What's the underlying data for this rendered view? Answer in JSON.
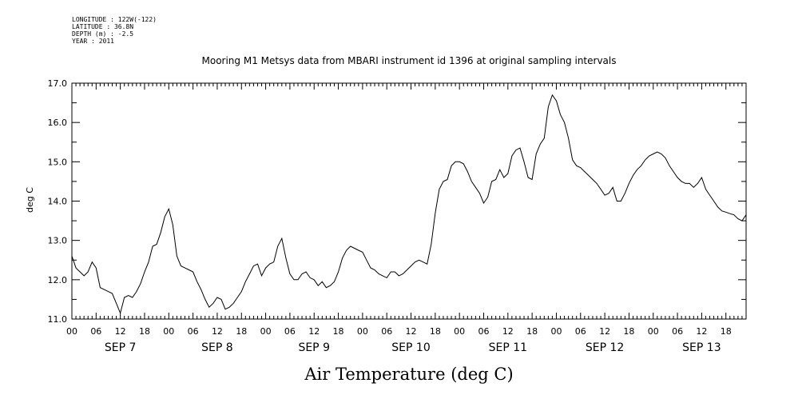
{
  "header": {
    "meta_lines": [
      "LONGITUDE : 122W(-122)",
      "LATITUDE : 36.8N",
      "DEPTH (m) : -2.5",
      "YEAR : 2011"
    ]
  },
  "chart_data": {
    "type": "line",
    "title": "Mooring M1 Metsys data from MBARI instrument id 1396 at original sampling intervals",
    "xlabel": "Air Temperature (deg C)",
    "ylabel": "deg C",
    "ylim": [
      11.0,
      17.0
    ],
    "yticks": [
      "11.0",
      "12.0",
      "13.0",
      "14.0",
      "15.0",
      "16.0",
      "17.0"
    ],
    "xlim_hours": [
      0,
      167
    ],
    "hour_tick_labels": [
      "00",
      "06",
      "12",
      "18",
      "00",
      "06",
      "12",
      "18",
      "00",
      "06",
      "12",
      "18",
      "00",
      "06",
      "12",
      "18",
      "00",
      "06",
      "12",
      "18",
      "00",
      "06",
      "12",
      "18",
      "00",
      "06",
      "12",
      "18"
    ],
    "day_labels": [
      "SEP  7",
      "SEP  8",
      "SEP  9",
      "SEP 10",
      "SEP 11",
      "SEP 12",
      "SEP 13"
    ],
    "grid": false,
    "series": [
      {
        "x_hours": [
          0,
          1,
          2,
          3,
          4,
          5,
          6,
          7,
          8,
          9,
          10,
          11,
          12,
          13,
          14,
          15,
          16,
          17,
          18,
          19,
          20,
          21,
          22,
          23,
          24,
          25,
          26,
          27,
          28,
          29,
          30,
          31,
          32,
          33,
          34,
          35,
          36,
          37,
          38,
          39,
          40,
          41,
          42,
          43,
          44,
          45,
          46,
          47,
          48,
          49,
          50,
          51,
          52,
          53,
          54,
          55,
          56,
          57,
          58,
          59,
          60,
          61,
          62,
          63,
          64,
          65,
          66,
          67,
          68,
          69,
          70,
          71,
          72,
          73,
          74,
          75,
          76,
          77,
          78,
          79,
          80,
          81,
          82,
          83,
          84,
          85,
          86,
          87,
          88,
          89,
          90,
          91,
          92,
          93,
          94,
          95,
          96,
          97,
          98,
          99,
          100,
          101,
          102,
          103,
          104,
          105,
          106,
          107,
          108,
          109,
          110,
          111,
          112,
          113,
          114,
          115,
          116,
          117,
          118,
          119,
          120,
          121,
          122,
          123,
          124,
          125,
          126,
          127,
          128,
          129,
          130,
          131,
          132,
          133,
          134,
          135,
          136,
          137,
          138,
          139,
          140,
          141,
          142,
          143,
          144,
          145,
          146,
          147,
          148,
          149,
          150,
          151,
          152,
          153,
          154,
          155,
          156,
          157,
          158,
          159,
          160,
          161,
          162,
          163,
          164,
          165,
          166,
          167
        ],
        "values": [
          12.6,
          12.3,
          12.2,
          12.1,
          12.2,
          12.45,
          12.3,
          11.8,
          11.75,
          11.7,
          11.65,
          11.4,
          11.15,
          11.55,
          11.6,
          11.55,
          11.7,
          11.9,
          12.2,
          12.45,
          12.85,
          12.9,
          13.2,
          13.6,
          13.8,
          13.4,
          12.6,
          12.35,
          12.3,
          12.25,
          12.2,
          11.95,
          11.75,
          11.5,
          11.3,
          11.4,
          11.55,
          11.5,
          11.25,
          11.3,
          11.4,
          11.55,
          11.7,
          11.95,
          12.15,
          12.35,
          12.4,
          12.1,
          12.3,
          12.4,
          12.45,
          12.85,
          13.05,
          12.55,
          12.15,
          12.0,
          12.0,
          12.15,
          12.2,
          12.05,
          12.0,
          11.85,
          11.95,
          11.8,
          11.85,
          11.95,
          12.2,
          12.55,
          12.75,
          12.85,
          12.8,
          12.75,
          12.7,
          12.5,
          12.3,
          12.25,
          12.15,
          12.1,
          12.05,
          12.2,
          12.2,
          12.1,
          12.15,
          12.25,
          12.35,
          12.45,
          12.5,
          12.45,
          12.4,
          12.9,
          13.7,
          14.3,
          14.5,
          14.55,
          14.9,
          15.0,
          15.0,
          14.95,
          14.75,
          14.5,
          14.35,
          14.2,
          13.95,
          14.1,
          14.5,
          14.55,
          14.8,
          14.6,
          14.7,
          15.15,
          15.3,
          15.35,
          15.0,
          14.6,
          14.55,
          15.2,
          15.45,
          15.6,
          16.4,
          16.7,
          16.55,
          16.2,
          16.0,
          15.6,
          15.05,
          14.9,
          14.85,
          14.75,
          14.65,
          14.55,
          14.45,
          14.3,
          14.15,
          14.2,
          14.35,
          14.0,
          14.0,
          14.2,
          14.45,
          14.65,
          14.8,
          14.9,
          15.05,
          15.15,
          15.2,
          15.25,
          15.2,
          15.1,
          14.9,
          14.75,
          14.6,
          14.5,
          14.45,
          14.45,
          14.35,
          14.45,
          14.6,
          14.3,
          14.15,
          14.0,
          13.85,
          13.75,
          13.72,
          13.68,
          13.65,
          13.55,
          13.5,
          13.65
        ]
      }
    ]
  }
}
